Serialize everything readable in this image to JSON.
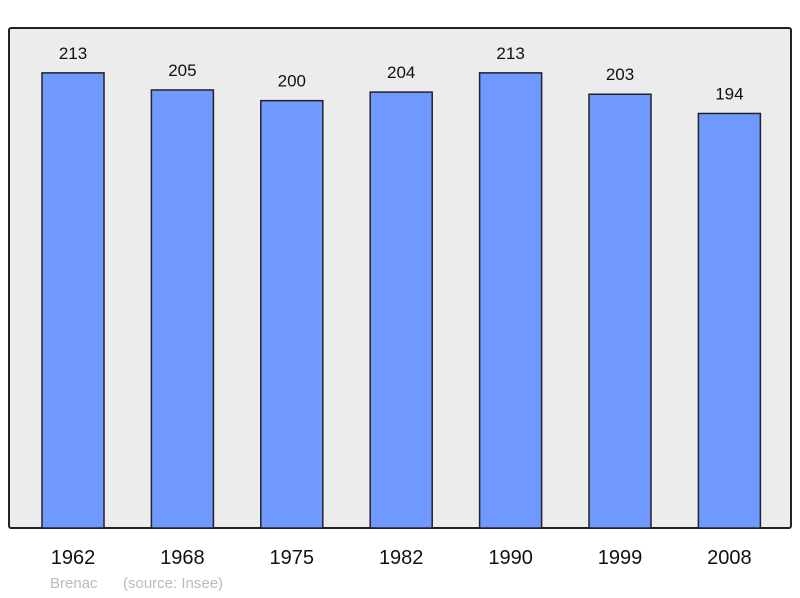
{
  "chart_data": {
    "type": "bar",
    "categories": [
      "1962",
      "1968",
      "1975",
      "1982",
      "1990",
      "1999",
      "2008"
    ],
    "values": [
      213,
      205,
      200,
      204,
      213,
      203,
      194
    ],
    "ylim": [
      0,
      234
    ],
    "grid": false,
    "bar_color": "#7099ff",
    "background_color": "#ececec"
  },
  "footer": {
    "place": "Brenac",
    "source": "(source: Insee)"
  }
}
